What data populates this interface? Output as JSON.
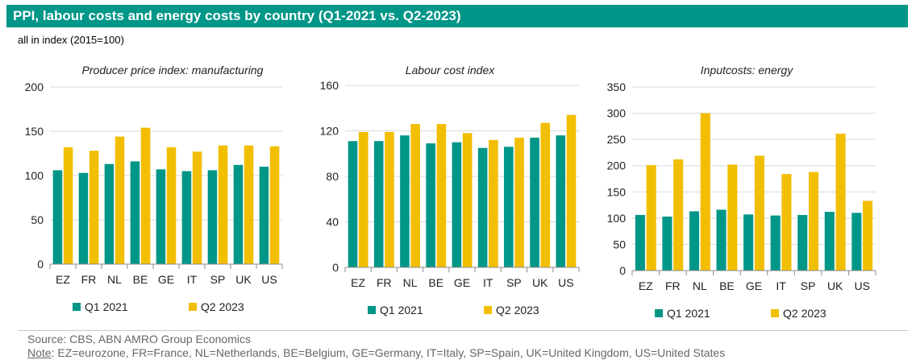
{
  "header": {
    "title": "PPI, labour costs and energy costs by country (Q1-2021 vs. Q2-2023)",
    "subtitle": "all in index (2015=100)"
  },
  "colors": {
    "header_bg": "#009688",
    "q1": "#009688",
    "q2": "#F2BE00"
  },
  "chart_data": [
    {
      "type": "bar",
      "title": "Producer price index: manufacturing",
      "categories": [
        "EZ",
        "FR",
        "NL",
        "BE",
        "GE",
        "IT",
        "SP",
        "UK",
        "US"
      ],
      "series": [
        {
          "name": "Q1 2021",
          "values": [
            106,
            103,
            113,
            116,
            107,
            105,
            106,
            112,
            110
          ]
        },
        {
          "name": "Q2 2023",
          "values": [
            132,
            128,
            144,
            154,
            132,
            127,
            134,
            134,
            133
          ]
        }
      ],
      "ylim": [
        0,
        200
      ],
      "yticks": [
        "0",
        "50",
        "100",
        "150",
        "200"
      ],
      "grid": true,
      "legend": "bottom"
    },
    {
      "type": "bar",
      "title": "Labour cost index",
      "categories": [
        "EZ",
        "FR",
        "NL",
        "BE",
        "GE",
        "IT",
        "SP",
        "UK",
        "US"
      ],
      "series": [
        {
          "name": "Q1 2021",
          "values": [
            111,
            111,
            116,
            109,
            110,
            105,
            106,
            114,
            116
          ]
        },
        {
          "name": "Q2 2023",
          "values": [
            119,
            119,
            126,
            126,
            118,
            112,
            114,
            127,
            134
          ]
        }
      ],
      "ylim": [
        0,
        160
      ],
      "yticks": [
        "0",
        "40",
        "80",
        "120",
        "160"
      ],
      "grid": true,
      "legend": "bottom"
    },
    {
      "type": "bar",
      "title": "Inputcosts: energy",
      "categories": [
        "EZ",
        "FR",
        "NL",
        "BE",
        "GE",
        "IT",
        "SP",
        "UK",
        "US"
      ],
      "series": [
        {
          "name": "Q1 2021",
          "values": [
            106,
            103,
            113,
            116,
            107,
            105,
            106,
            112,
            110
          ]
        },
        {
          "name": "Q2 2023",
          "values": [
            201,
            212,
            300,
            202,
            219,
            184,
            188,
            261,
            133
          ]
        }
      ],
      "ylim": [
        0,
        350
      ],
      "yticks": [
        "0",
        "50",
        "100",
        "150",
        "200",
        "250",
        "300",
        "350"
      ],
      "grid": true,
      "legend": "bottom"
    }
  ],
  "footer": {
    "source": "Source: CBS, ABN AMRO Group Economics",
    "note_label": "Note",
    "note_text": ": EZ=eurozone, FR=France, NL=Netherlands, BE=Belgium, GE=Germany, IT=Italy, SP=Spain, UK=United Kingdom, US=United States"
  }
}
